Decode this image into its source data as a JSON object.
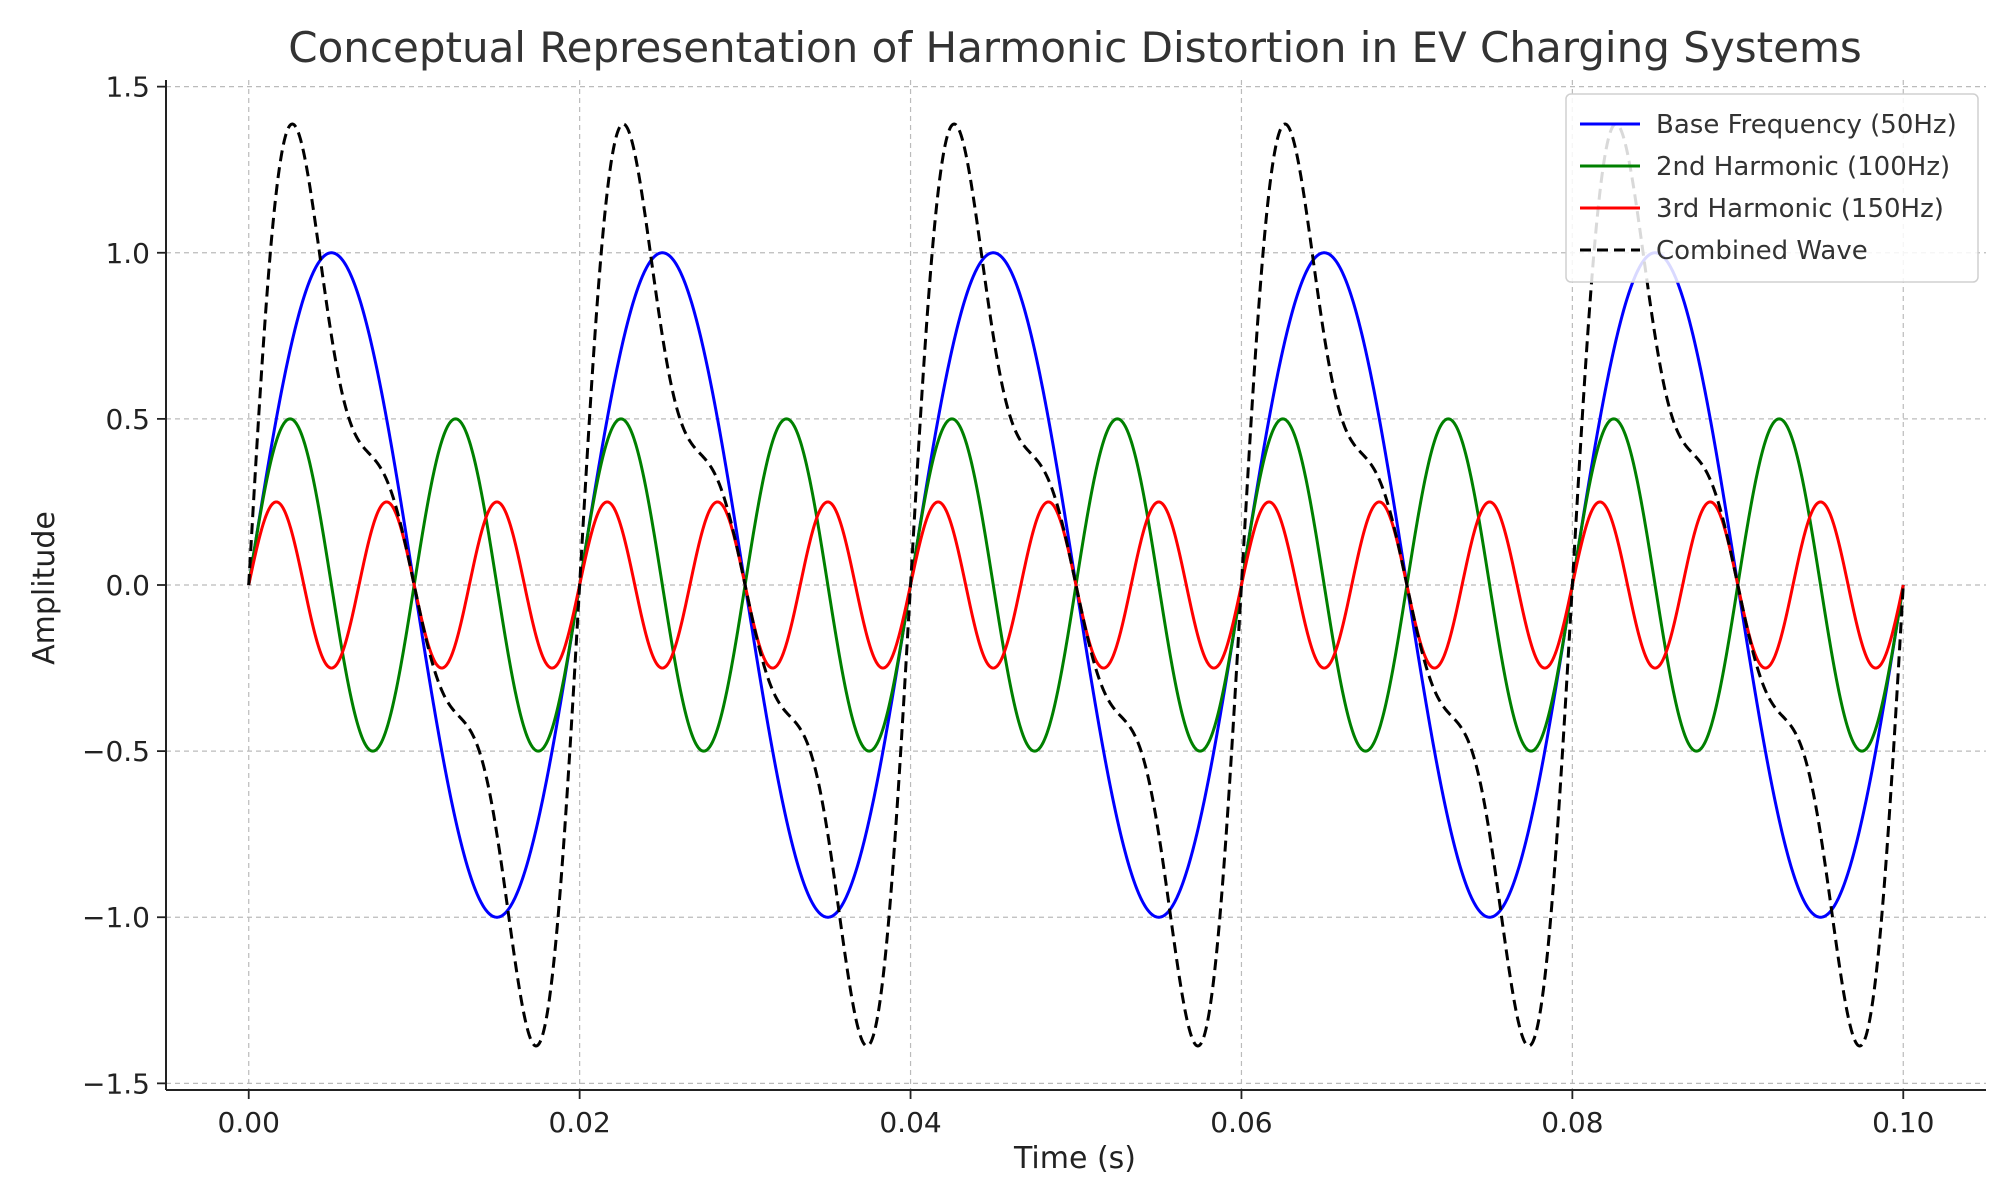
{
  "chart_data": {
    "type": "line",
    "title": "Conceptual Representation of Harmonic Distortion in EV Charging Systems",
    "xlabel": "Time (s)",
    "ylabel": "Amplitude",
    "xlim": [
      -0.005,
      0.105
    ],
    "ylim": [
      -1.52,
      1.52
    ],
    "x_ticks": [
      0.0,
      0.02,
      0.04,
      0.06,
      0.08,
      0.1
    ],
    "x_tick_labels": [
      "0.00",
      "0.02",
      "0.04",
      "0.06",
      "0.08",
      "0.10"
    ],
    "y_ticks": [
      -1.5,
      -1.0,
      -0.5,
      0.0,
      0.5,
      1.0,
      1.5
    ],
    "y_tick_labels": [
      "−1.5",
      "−1.0",
      "−0.5",
      "0.0",
      "0.5",
      "1.0",
      "1.5"
    ],
    "grid": true,
    "legend_position": "top-right",
    "x_domain": [
      0.0,
      0.1
    ],
    "series": [
      {
        "name": "Base Frequency (50Hz)",
        "color": "#0000ff",
        "style": "solid",
        "frequency_hz": 50,
        "amplitude": 1.0
      },
      {
        "name": "2nd Harmonic (100Hz)",
        "color": "#008000",
        "style": "solid",
        "frequency_hz": 100,
        "amplitude": 0.5
      },
      {
        "name": "3rd Harmonic (150Hz)",
        "color": "#ff0000",
        "style": "solid",
        "frequency_hz": 150,
        "amplitude": 0.25
      },
      {
        "name": "Combined Wave",
        "color": "#000000",
        "style": "dashed",
        "components": [
          "Base Frequency (50Hz)",
          "2nd Harmonic (100Hz)",
          "3rd Harmonic (150Hz)"
        ]
      }
    ]
  }
}
